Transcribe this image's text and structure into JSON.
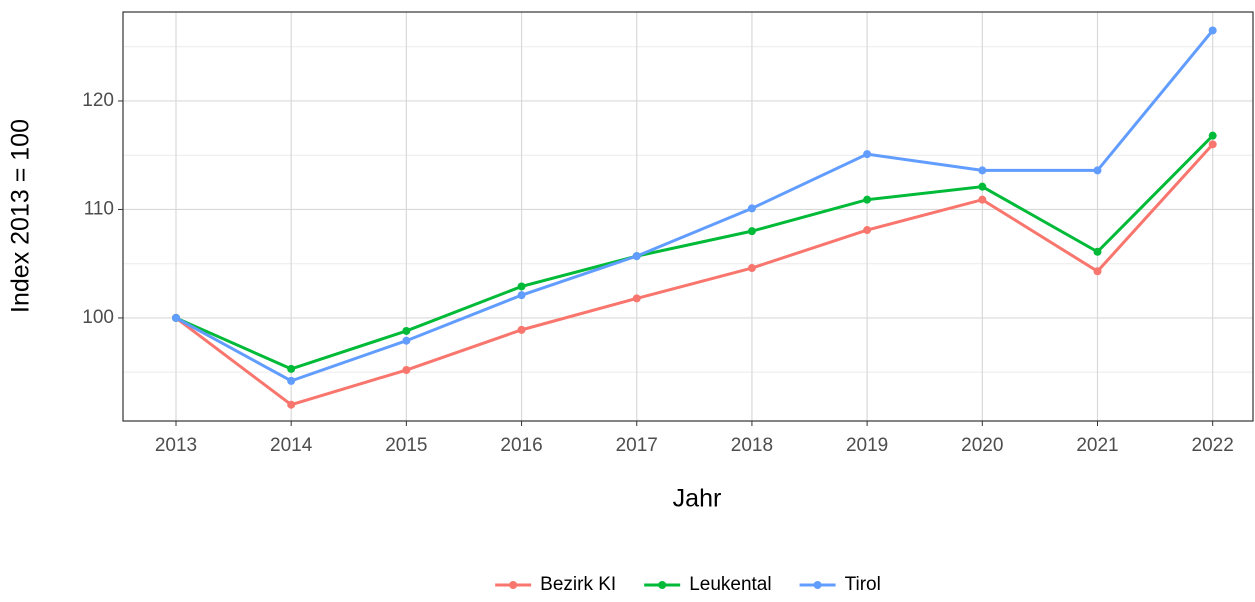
{
  "chart_data": {
    "type": "line",
    "x_label": "Jahr",
    "y_label": "Index  2013  = 100",
    "x": [
      2013,
      2014,
      2015,
      2016,
      2017,
      2018,
      2019,
      2020,
      2021,
      2022
    ],
    "series": [
      {
        "name": "Bezirk KI",
        "color": "#F8766D",
        "values": [
          100,
          92.0,
          95.2,
          98.9,
          101.8,
          104.6,
          108.1,
          110.9,
          104.3,
          116.0
        ]
      },
      {
        "name": "Leukental",
        "color": "#00BA38",
        "values": [
          100,
          95.3,
          98.8,
          102.9,
          105.7,
          108.0,
          110.9,
          112.1,
          106.1,
          116.8
        ]
      },
      {
        "name": "Tirol",
        "color": "#619CFF",
        "values": [
          100,
          94.2,
          97.9,
          102.1,
          105.7,
          110.1,
          115.1,
          113.6,
          113.6,
          126.5
        ]
      }
    ],
    "xlim": [
      2012.54,
      2022.35
    ],
    "xticks": [
      2013,
      2014,
      2015,
      2016,
      2017,
      2018,
      2019,
      2020,
      2021,
      2022
    ],
    "ylim": [
      90.5,
      128.2
    ],
    "yticks": [
      100,
      110,
      120
    ],
    "y_minor_ticks": [
      95,
      105,
      115,
      125
    ],
    "grid": true,
    "legend": "bottom"
  }
}
